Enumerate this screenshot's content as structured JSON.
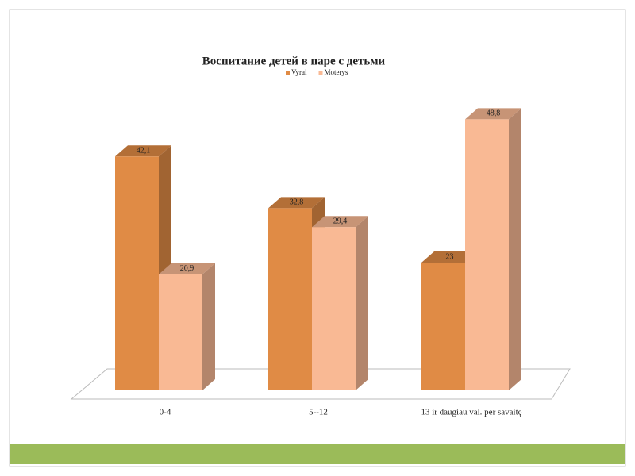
{
  "chart_data": {
    "type": "bar3d",
    "title": "Воспитание детей в паре с детьми",
    "categories": [
      "0-4",
      "5--12",
      "13 ir daugiau val. per savaitę"
    ],
    "series": [
      {
        "name": "Vyrai",
        "color": "#e08b45",
        "values": [
          42.1,
          32.8,
          23
        ],
        "value_labels": [
          "42,1",
          "32,8",
          "23"
        ]
      },
      {
        "name": "Moterys",
        "color": "#f9b994",
        "values": [
          20.9,
          29.4,
          48.8
        ],
        "value_labels": [
          "20,9",
          "29,4",
          "48,8"
        ]
      }
    ],
    "legend": "top"
  }
}
